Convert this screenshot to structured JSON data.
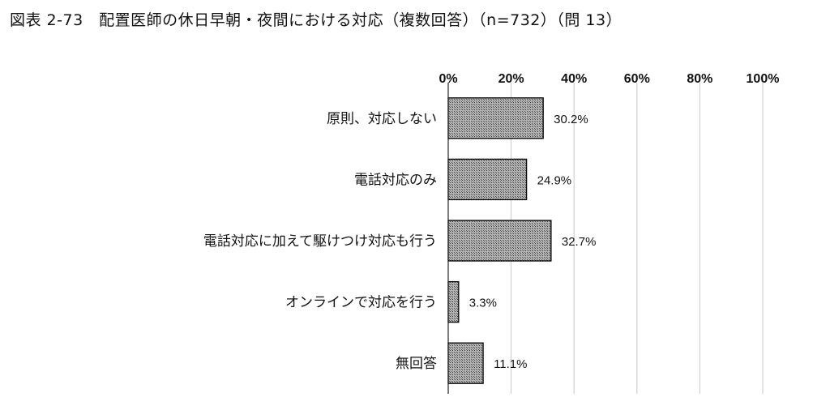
{
  "header": {
    "title": "図表 2-73　配置医師の休日早朝・夜間における対応（複数回答）（n=732）（問 13）"
  },
  "chart_data": {
    "type": "bar",
    "orientation": "horizontal",
    "title": "図表 2-73　配置医師の休日早朝・夜間における対応（複数回答）（n=732）（問 13）",
    "categories": [
      "原則、対応しない",
      "電話対応のみ",
      "電話対応に加えて駆けつけ対応も行う",
      "オンラインで対応を行う",
      "無回答"
    ],
    "values": [
      30.2,
      24.9,
      32.7,
      3.3,
      11.1
    ],
    "value_labels": [
      "30.2%",
      "24.9%",
      "32.7%",
      "3.3%",
      "11.1%"
    ],
    "xlim": [
      0,
      100
    ],
    "xticks": [
      "0%",
      "20%",
      "40%",
      "60%",
      "80%",
      "100%"
    ],
    "xtick_values": [
      0,
      20,
      40,
      60,
      80,
      100
    ],
    "axis_position": "top",
    "grid": true,
    "bar_fill": "#a6a6a6",
    "bar_pattern": "crosshatch",
    "bar_stroke": "#000000"
  }
}
